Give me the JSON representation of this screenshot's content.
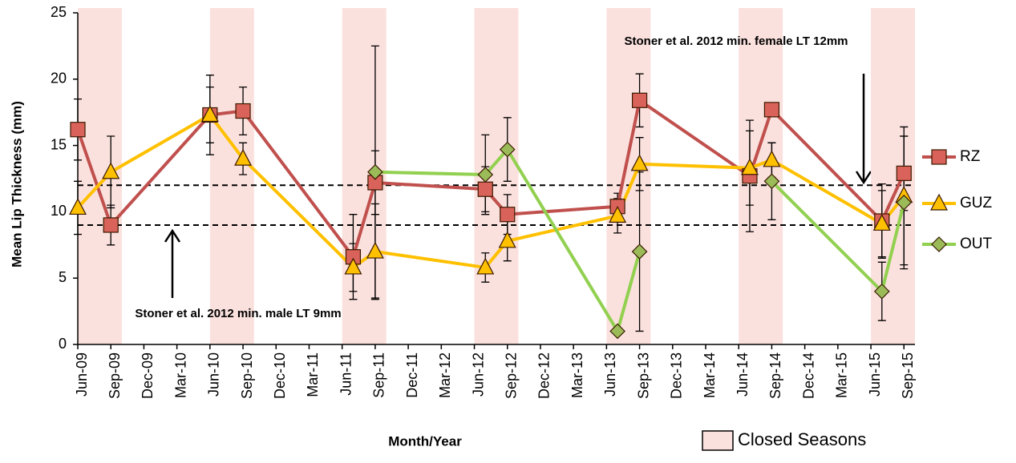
{
  "chart_data": {
    "type": "line",
    "x_label": "Month/Year",
    "y_label": "Mean Lip Thickness (mm)",
    "xlim": [
      "2009-06",
      "2015-10"
    ],
    "xticks": [
      {
        "value": "2009-06",
        "label": "Jun-09"
      },
      {
        "value": "2009-09",
        "label": "Sep-09"
      },
      {
        "value": "2009-12",
        "label": "Dec-09"
      },
      {
        "value": "2010-03",
        "label": "Mar-10"
      },
      {
        "value": "2010-06",
        "label": "Jun-10"
      },
      {
        "value": "2010-09",
        "label": "Sep-10"
      },
      {
        "value": "2010-12",
        "label": "Dec-10"
      },
      {
        "value": "2011-03",
        "label": "Mar-11"
      },
      {
        "value": "2011-06",
        "label": "Jun-11"
      },
      {
        "value": "2011-09",
        "label": "Sep-11"
      },
      {
        "value": "2011-12",
        "label": "Dec-11"
      },
      {
        "value": "2012-03",
        "label": "Mar-12"
      },
      {
        "value": "2012-06",
        "label": "Jun-12"
      },
      {
        "value": "2012-09",
        "label": "Sep-12"
      },
      {
        "value": "2012-12",
        "label": "Dec-12"
      },
      {
        "value": "2013-03",
        "label": "Mar-13"
      },
      {
        "value": "2013-06",
        "label": "Jun-13"
      },
      {
        "value": "2013-09",
        "label": "Sep-13"
      },
      {
        "value": "2013-12",
        "label": "Dec-13"
      },
      {
        "value": "2014-03",
        "label": "Mar-14"
      },
      {
        "value": "2014-06",
        "label": "Jun-14"
      },
      {
        "value": "2014-09",
        "label": "Sep-14"
      },
      {
        "value": "2014-12",
        "label": "Dec-14"
      },
      {
        "value": "2015-03",
        "label": "Mar-15"
      },
      {
        "value": "2015-06",
        "label": "Jun-15"
      },
      {
        "value": "2015-09",
        "label": "Sep-15"
      }
    ],
    "ylim": [
      0,
      25
    ],
    "yticks": [
      0,
      5,
      10,
      15,
      20,
      25
    ],
    "grid": false,
    "legend_position": "right",
    "x": [
      "2009-06",
      "2009-09",
      "2010-06",
      "2010-09",
      "2011-07",
      "2011-09",
      "2012-07",
      "2012-09",
      "2013-07",
      "2013-09",
      "2014-07",
      "2014-09",
      "2015-07",
      "2015-09"
    ],
    "series": [
      {
        "name": "RZ",
        "color": "#c0504d",
        "marker_color": "#d9625a",
        "marker": "square",
        "values": [
          16.2,
          9.0,
          17.3,
          17.6,
          6.6,
          12.2,
          11.7,
          9.8,
          10.4,
          18.4,
          12.7,
          17.7,
          9.3,
          12.9
        ],
        "errors": [
          2.3,
          1.5,
          3.0,
          1.8,
          3.2,
          2.4,
          1.7,
          1.5,
          1.0,
          2.0,
          4.2,
          null,
          2.8,
          2.8
        ]
      },
      {
        "name": "GUZ",
        "color": "#ffc000",
        "marker_color": "#ffc000",
        "marker": "triangle",
        "values": [
          10.3,
          13.0,
          17.3,
          14.0,
          5.8,
          7.0,
          5.8,
          7.8,
          9.7,
          13.6,
          13.3,
          13.9,
          9.1,
          11.2
        ],
        "errors": [
          2.0,
          2.7,
          2.1,
          1.2,
          1.8,
          3.6,
          1.1,
          1.5,
          1.3,
          2.0,
          2.8,
          1.3,
          2.5,
          5.2
        ]
      },
      {
        "name": "OUT",
        "color": "#92d050",
        "marker_color": "#9bbb59",
        "marker": "diamond",
        "values": [
          null,
          null,
          null,
          null,
          null,
          13.0,
          12.8,
          14.7,
          1.0,
          7.0,
          null,
          12.3,
          4.0,
          10.7
        ],
        "errors": [
          null,
          null,
          null,
          null,
          null,
          9.5,
          3.0,
          2.4,
          null,
          6.0,
          null,
          2.9,
          2.2,
          5.0
        ]
      }
    ],
    "reference_lines": [
      {
        "value": 12,
        "label": "Stoner et al. 2012 min. female LT 12mm"
      },
      {
        "value": 9,
        "label": "Stoner et al. 2012 min. male LT 9mm"
      }
    ],
    "shaded_periods": {
      "label": "Closed Seasons",
      "color": "#fbe1dd",
      "spans": [
        [
          "2009-06",
          "2009-10"
        ],
        [
          "2010-06",
          "2010-10"
        ],
        [
          "2011-06",
          "2011-10"
        ],
        [
          "2012-06",
          "2012-10"
        ],
        [
          "2013-06",
          "2013-10"
        ],
        [
          "2014-06",
          "2014-10"
        ],
        [
          "2015-06",
          "2015-10"
        ]
      ]
    }
  }
}
